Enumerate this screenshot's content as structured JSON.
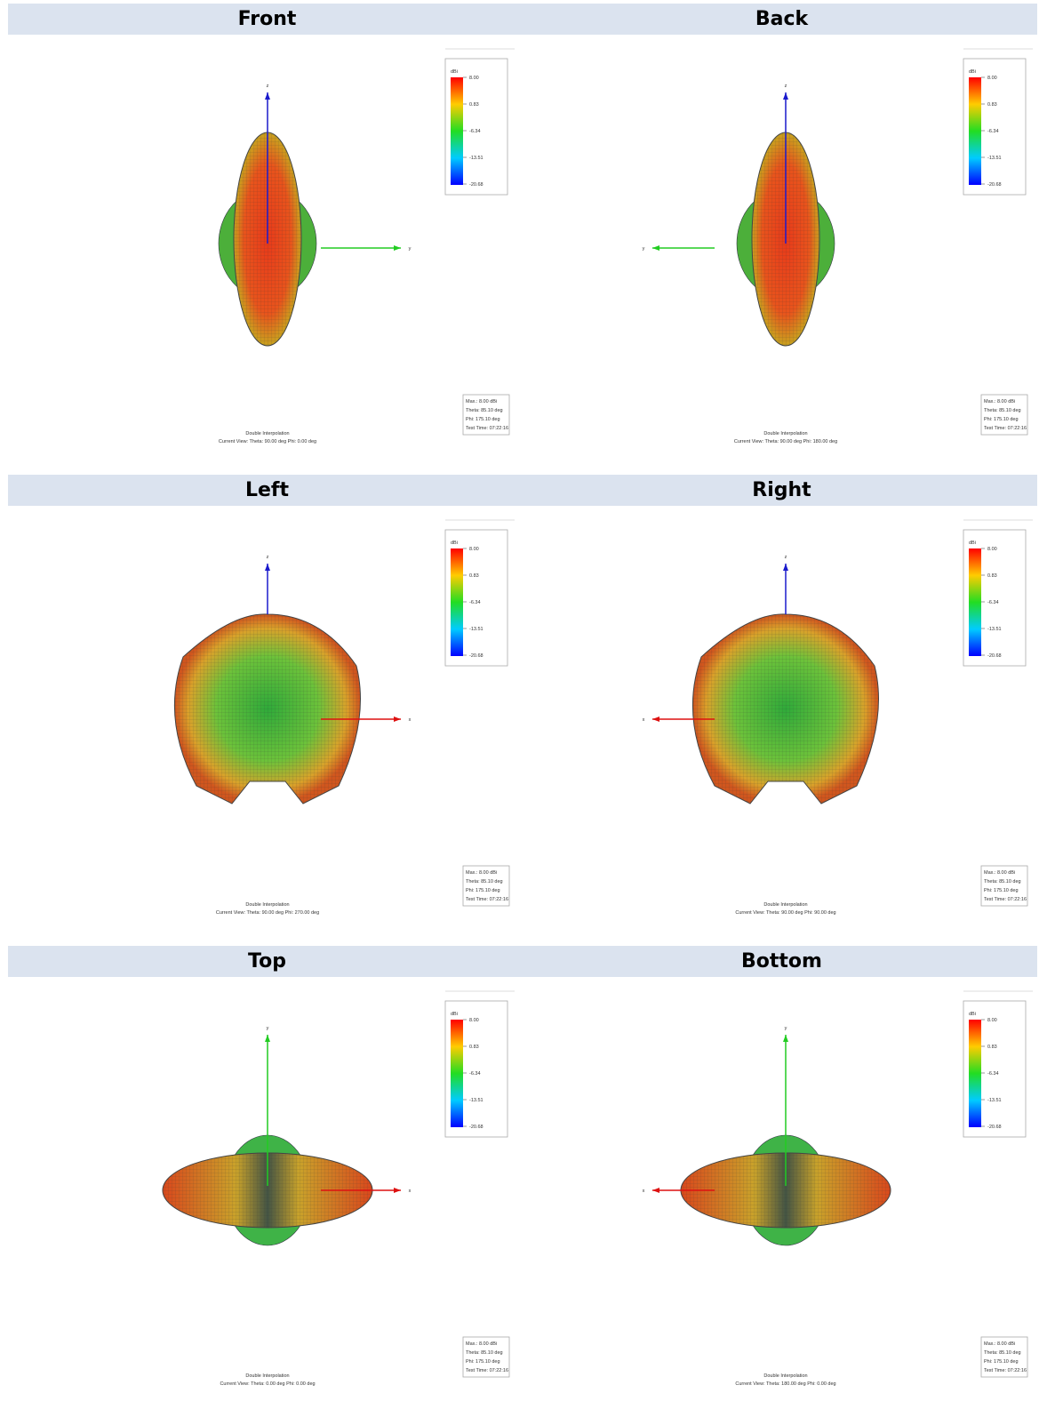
{
  "legend_unit": "dBi",
  "legend_ticks": [
    "8.00",
    "0.83",
    "-6.34",
    "-13.51",
    "-20.68"
  ],
  "info": [
    "Max.: 8.00 dBi",
    "Theta: 85.10 deg",
    "Phi: 175.10 deg",
    "Test Time: 07:22:16"
  ],
  "interpolation": "Double Interpolation",
  "panels": [
    {
      "title": "Front",
      "current_view": "Current View:   Theta: 90.00 deg     Phi: 0.00 deg",
      "vertical_axis": "z",
      "horizontal_axis": "y"
    },
    {
      "title": "Back",
      "current_view": "Current View:   Theta: 90.00 deg     Phi: 180.00 deg",
      "vertical_axis": "z",
      "horizontal_axis": "y"
    },
    {
      "title": "Left",
      "current_view": "Current View:   Theta: 90.00 deg     Phi: 270.00 deg",
      "vertical_axis": "z",
      "horizontal_axis": "x"
    },
    {
      "title": "Right",
      "current_view": "Current View:   Theta: 90.00 deg     Phi: 90.00 deg",
      "vertical_axis": "z",
      "horizontal_axis": "x"
    },
    {
      "title": "Top",
      "current_view": "Current View:   Theta: 0.00 deg     Phi: 0.00 deg",
      "vertical_axis": "y",
      "horizontal_axis": "x"
    },
    {
      "title": "Bottom",
      "current_view": "Current View:   Theta: 180.00 deg     Phi: 0.00 deg",
      "vertical_axis": "y",
      "horizontal_axis": "x"
    }
  ]
}
